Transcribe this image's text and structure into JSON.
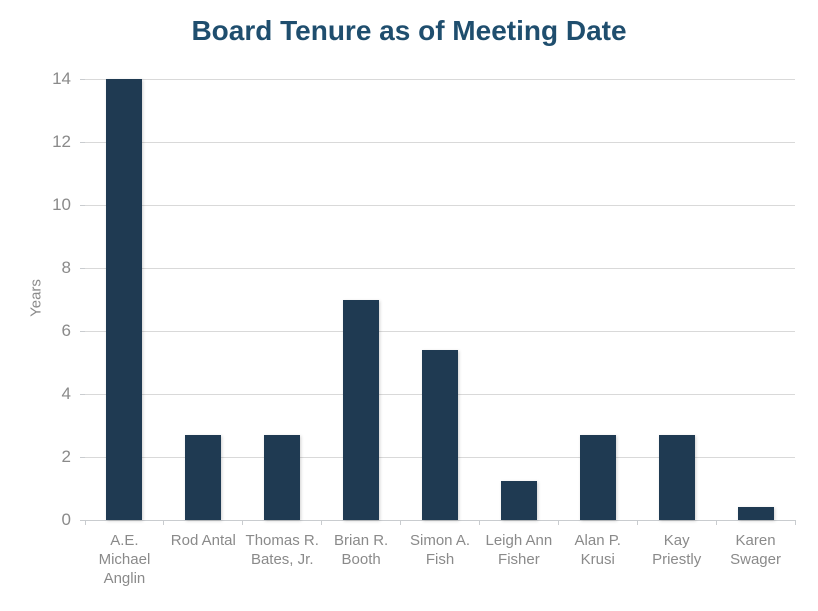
{
  "chart_data": {
    "type": "bar",
    "title": "Board Tenure as of Meeting Date",
    "xlabel": "",
    "ylabel": "Years",
    "ylim": [
      0,
      14
    ],
    "yticks": [
      0,
      2,
      4,
      6,
      8,
      10,
      12,
      14
    ],
    "grid": true,
    "legend": false,
    "categories": [
      "A.E. Michael Anglin",
      "Rod Antal",
      "Thomas R. Bates, Jr.",
      "Brian R. Booth",
      "Simon A. Fish",
      "Leigh Ann Fisher",
      "Alan P. Krusi",
      "Kay Priestly",
      "Karen Swager"
    ],
    "category_label_lines": [
      [
        "A.E.",
        "Michael",
        "Anglin"
      ],
      [
        "Rod Antal"
      ],
      [
        "Thomas R.",
        "Bates, Jr."
      ],
      [
        "Brian R.",
        "Booth"
      ],
      [
        "Simon A.",
        "Fish"
      ],
      [
        "Leigh Ann",
        "Fisher"
      ],
      [
        "Alan P.",
        "Krusi"
      ],
      [
        "Kay",
        "Priestly"
      ],
      [
        "Karen",
        "Swager"
      ]
    ],
    "values": [
      14,
      2.7,
      2.7,
      7,
      5.4,
      1.25,
      2.7,
      2.7,
      0.4
    ]
  },
  "colors": {
    "bar": "#1F3A52",
    "title": "#1F4E6E",
    "axis_text": "#8A8A8A",
    "gridline": "#D9D9D9",
    "axis_line": "#C9CCCF",
    "background": "#FFFFFF"
  }
}
